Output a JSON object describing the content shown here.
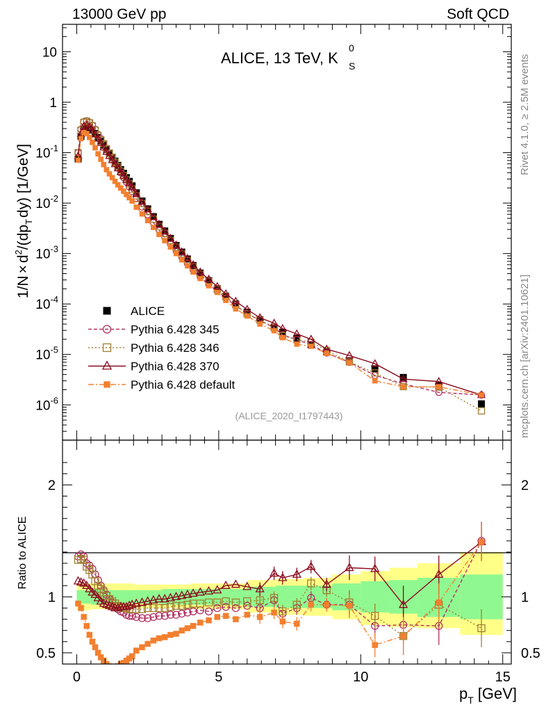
{
  "header": {
    "left": "13000 GeV pp",
    "right": "Soft QCD"
  },
  "side_labels": {
    "rivet": "Rivet 4.1.0, ≥ 2.5M events",
    "mcplots": "mcplots.cern.ch [arXiv:2401.10621]"
  },
  "plot_title": "ALICE, 13 TeV, K",
  "plot_title_sup": "0",
  "plot_title_sub": "S",
  "analysis_id": "(ALICE_2020_I1797443)",
  "ylabel_main": "1/N × d²/(dp_T dy) [1/GeV]",
  "ylabel_ratio": "Ratio to ALICE",
  "xlabel": "p_T [GeV]",
  "colors": {
    "alice": "#000000",
    "p345": "#b03060",
    "p346": "#a08030",
    "p370": "#8b0a1e",
    "pdef": "#f28030",
    "band_inner": "#90f890",
    "band_outer": "#ffff88"
  },
  "chart_data": [
    {
      "type": "line",
      "panel": "main",
      "yscale": "log",
      "xlim": [
        -0.5,
        15.3
      ],
      "ylim": [
        2e-07,
        35
      ],
      "y_ticks": [
        "10",
        "1",
        "10^-1",
        "10^-2",
        "10^-3",
        "10^-4",
        "10^-5",
        "10^-6"
      ],
      "x": [
        0.05,
        0.15,
        0.25,
        0.35,
        0.45,
        0.55,
        0.65,
        0.75,
        0.85,
        0.95,
        1.05,
        1.15,
        1.25,
        1.35,
        1.45,
        1.55,
        1.65,
        1.75,
        1.85,
        1.95,
        2.1,
        2.3,
        2.5,
        2.7,
        2.9,
        3.1,
        3.3,
        3.5,
        3.7,
        3.9,
        4.1,
        4.35,
        4.65,
        4.95,
        5.25,
        5.6,
        6.0,
        6.45,
        6.95,
        7.25,
        7.75,
        8.25,
        8.8,
        9.6,
        10.5,
        11.5,
        12.75,
        14.25
      ],
      "series": [
        {
          "name": "ALICE",
          "key": "alice",
          "values": [
            0.075,
            0.21,
            0.3,
            0.33,
            0.31,
            0.28,
            0.24,
            0.2,
            0.17,
            0.14,
            0.116,
            0.097,
            0.081,
            0.068,
            0.056,
            0.046,
            0.039,
            0.032,
            0.027,
            0.022,
            0.016,
            0.011,
            0.0077,
            0.0054,
            0.0038,
            0.0028,
            0.002,
            0.00145,
            0.00107,
            0.00078,
            0.00058,
            0.00041,
            0.00029,
            0.0002,
            0.000143,
            0.0001,
            6.9e-05,
            4.9e-05,
            3.4e-05,
            2.75e-05,
            2.1e-05,
            1.56e-05,
            1.13e-05,
            7.5e-06,
            5.2e-06,
            3.5e-06,
            2.4e-06,
            1.05e-06
          ]
        },
        {
          "name": "Pythia 6.428 345",
          "key": "p345",
          "values": [
            0.1,
            0.29,
            0.41,
            0.43,
            0.4,
            0.35,
            0.29,
            0.23,
            0.19,
            0.15,
            0.12,
            0.096,
            0.077,
            0.062,
            0.05,
            0.04,
            0.032,
            0.026,
            0.021,
            0.017,
            0.0123,
            0.0084,
            0.0059,
            0.0041,
            0.0029,
            0.0021,
            0.00154,
            0.00113,
            0.00084,
            0.00063,
            0.00047,
            0.00034,
            0.000245,
            0.000178,
            0.00013,
            9.2e-05,
            6.5e-05,
            4.7e-05,
            3.4e-05,
            2.45e-05,
            1.96e-05,
            1.55e-05,
            1.07e-05,
            7e-06,
            3.85e-06,
            2.62e-06,
            1.77e-06,
            1.57e-06
          ]
        },
        {
          "name": "Pythia 6.428 346",
          "key": "p346",
          "values": [
            0.1,
            0.28,
            0.4,
            0.42,
            0.39,
            0.34,
            0.28,
            0.22,
            0.18,
            0.15,
            0.12,
            0.098,
            0.08,
            0.065,
            0.053,
            0.043,
            0.035,
            0.029,
            0.024,
            0.019,
            0.014,
            0.0098,
            0.0069,
            0.0048,
            0.0034,
            0.0025,
            0.00182,
            0.00133,
            0.00098,
            0.00073,
            0.00055,
            0.00039,
            0.00028,
            0.000195,
            0.00014,
            9.6e-05,
            6.4e-05,
            4.8e-05,
            3.45e-05,
            2.35e-05,
            1.96e-05,
            1.75e-05,
            1.2e-05,
            7.1e-06,
            4.3e-06,
            2.3e-06,
            2.25e-06,
            7.6e-07
          ]
        },
        {
          "name": "Pythia 6.428 370",
          "key": "p370",
          "values": [
            0.086,
            0.235,
            0.33,
            0.35,
            0.32,
            0.28,
            0.23,
            0.19,
            0.155,
            0.127,
            0.104,
            0.086,
            0.071,
            0.059,
            0.049,
            0.041,
            0.035,
            0.029,
            0.0248,
            0.0205,
            0.0151,
            0.0106,
            0.0075,
            0.0053,
            0.0038,
            0.00277,
            0.002,
            0.00147,
            0.00108,
            0.0008,
            0.0006,
            0.00043,
            0.00031,
            0.000222,
            0.000159,
            0.000113,
            7.8e-05,
            5.35e-05,
            4.15e-05,
            3.25e-05,
            2.55e-05,
            2e-05,
            1.27e-05,
            9.5e-06,
            6.55e-06,
            3.25e-06,
            2.9e-06,
            1.57e-06
          ]
        },
        {
          "name": "Pythia 6.428 default",
          "key": "pdef",
          "values": [
            0.071,
            0.19,
            0.25,
            0.24,
            0.2,
            0.16,
            0.125,
            0.095,
            0.074,
            0.058,
            0.046,
            0.038,
            0.032,
            0.027,
            0.023,
            0.0199,
            0.0172,
            0.0148,
            0.0128,
            0.011,
            0.0083,
            0.0061,
            0.0045,
            0.0033,
            0.0024,
            0.0018,
            0.00135,
            0.001,
            0.00075,
            0.00057,
            0.00043,
            0.00032,
            0.00023,
            0.00017,
            0.000118,
            8e-05,
            5.8e-05,
            4e-05,
            2.95e-05,
            2.15e-05,
            1.6e-05,
            1.45e-05,
            1.05e-05,
            6.9e-06,
            3e-06,
            2.28e-06,
            2.28e-06,
            1.57e-06
          ]
        }
      ]
    },
    {
      "type": "line",
      "panel": "ratio",
      "ylabel": "Ratio to ALICE",
      "xlabel": "p_T [GeV]",
      "xlim": [
        -0.5,
        15.3
      ],
      "ylim": [
        0.4,
        2.4
      ],
      "x_ticks": [
        0,
        5,
        10,
        15
      ],
      "y_ticks": [
        0.5,
        1,
        2
      ],
      "x": [
        0.05,
        0.15,
        0.25,
        0.35,
        0.45,
        0.55,
        0.65,
        0.75,
        0.85,
        0.95,
        1.05,
        1.15,
        1.25,
        1.35,
        1.45,
        1.55,
        1.65,
        1.75,
        1.85,
        1.95,
        2.1,
        2.3,
        2.5,
        2.7,
        2.9,
        3.1,
        3.3,
        3.5,
        3.7,
        3.9,
        4.1,
        4.35,
        4.65,
        4.95,
        5.25,
        5.6,
        6.0,
        6.45,
        6.95,
        7.25,
        7.75,
        8.25,
        8.8,
        9.6,
        10.5,
        11.5,
        12.75,
        14.25
      ],
      "series": [
        {
          "name": "Pythia 6.428 345",
          "key": "p345",
          "values": [
            1.36,
            1.38,
            1.36,
            1.3,
            1.28,
            1.25,
            1.2,
            1.15,
            1.1,
            1.06,
            1.02,
            0.98,
            0.95,
            0.92,
            0.89,
            0.87,
            0.86,
            0.84,
            0.83,
            0.83,
            0.82,
            0.81,
            0.81,
            0.82,
            0.83,
            0.83,
            0.84,
            0.84,
            0.85,
            0.86,
            0.87,
            0.88,
            0.87,
            0.9,
            0.91,
            0.9,
            0.92,
            0.9,
            0.97,
            0.85,
            0.9,
            0.99,
            0.93,
            0.93,
            0.74,
            0.75,
            0.74,
            1.5
          ]
        },
        {
          "name": "Pythia 6.428 346",
          "key": "p346",
          "values": [
            1.33,
            1.34,
            1.33,
            1.27,
            1.24,
            1.2,
            1.14,
            1.1,
            1.07,
            1.04,
            1.01,
            0.98,
            0.96,
            0.94,
            0.92,
            0.91,
            0.9,
            0.9,
            0.89,
            0.89,
            0.89,
            0.89,
            0.9,
            0.9,
            0.9,
            0.9,
            0.91,
            0.92,
            0.92,
            0.93,
            0.94,
            0.94,
            0.95,
            0.95,
            0.96,
            0.95,
            0.96,
            0.97,
            0.99,
            0.87,
            0.93,
            1.12,
            1.06,
            0.95,
            0.83,
            0.65,
            0.93,
            0.72
          ]
        },
        {
          "name": "Pythia 6.428 370",
          "key": "p370",
          "values": [
            1.14,
            1.13,
            1.12,
            1.1,
            1.07,
            1.04,
            1.02,
            0.99,
            0.96,
            0.94,
            0.93,
            0.92,
            0.91,
            0.9,
            0.9,
            0.91,
            0.91,
            0.91,
            0.92,
            0.93,
            0.94,
            0.95,
            0.96,
            0.97,
            0.98,
            0.98,
            0.99,
            1.0,
            1.01,
            1.02,
            1.03,
            1.04,
            1.05,
            1.06,
            1.1,
            1.11,
            1.09,
            1.07,
            1.21,
            1.17,
            1.2,
            1.27,
            1.11,
            1.26,
            1.25,
            0.93,
            1.2,
            1.49
          ]
        },
        {
          "name": "Pythia 6.428 default",
          "key": "pdef",
          "values": [
            0.94,
            0.9,
            0.82,
            0.74,
            0.66,
            0.6,
            0.55,
            0.5,
            0.46,
            0.43,
            0.4,
            0.38,
            0.37,
            0.375,
            0.38,
            0.4,
            0.41,
            0.43,
            0.45,
            0.47,
            0.52,
            0.55,
            0.58,
            0.61,
            0.63,
            0.64,
            0.66,
            0.67,
            0.7,
            0.72,
            0.74,
            0.77,
            0.79,
            0.82,
            0.83,
            0.8,
            0.84,
            0.82,
            0.86,
            0.78,
            0.76,
            0.93,
            0.93,
            0.92,
            0.57,
            0.65,
            0.95,
            1.49
          ]
        }
      ],
      "band_x_edges": [
        0.0,
        0.5,
        1.0,
        2.0,
        3.0,
        4.0,
        5.0,
        6.0,
        7.0,
        8.0,
        9.0,
        10.0,
        11.0,
        12.0,
        13.5,
        15.0
      ],
      "band_inner": [
        [
          0.94,
          1.06
        ],
        [
          0.93,
          1.07
        ],
        [
          0.94,
          1.06
        ],
        [
          0.94,
          1.06
        ],
        [
          0.93,
          1.07
        ],
        [
          0.93,
          1.07
        ],
        [
          0.93,
          1.07
        ],
        [
          0.91,
          1.09
        ],
        [
          0.9,
          1.1
        ],
        [
          0.9,
          1.1
        ],
        [
          0.88,
          1.12
        ],
        [
          0.86,
          1.14
        ],
        [
          0.85,
          1.15
        ],
        [
          0.82,
          1.17
        ],
        [
          0.8,
          1.2
        ]
      ],
      "band_outer": [
        [
          0.88,
          1.12
        ],
        [
          0.89,
          1.12
        ],
        [
          0.89,
          1.12
        ],
        [
          0.9,
          1.11
        ],
        [
          0.9,
          1.11
        ],
        [
          0.89,
          1.12
        ],
        [
          0.89,
          1.12
        ],
        [
          0.86,
          1.15
        ],
        [
          0.84,
          1.16
        ],
        [
          0.83,
          1.17
        ],
        [
          0.8,
          1.2
        ],
        [
          0.75,
          1.23
        ],
        [
          0.73,
          1.26
        ],
        [
          0.72,
          1.3
        ],
        [
          0.66,
          1.4
        ]
      ]
    }
  ]
}
